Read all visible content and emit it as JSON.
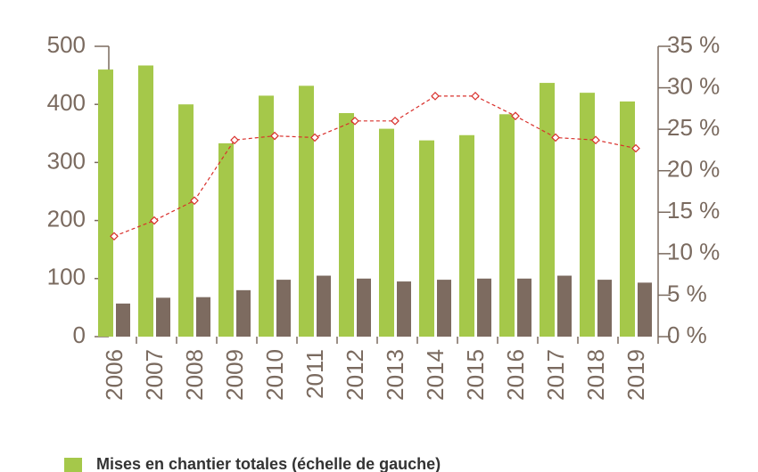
{
  "chart_data": {
    "type": "bar",
    "categories": [
      "2006",
      "2007",
      "2008",
      "2009",
      "2010",
      "2011",
      "2012",
      "2013",
      "2014",
      "2015",
      "2016",
      "2017",
      "2018",
      "2019"
    ],
    "series": [
      {
        "name": "Mises en chantier totales (échelle de gauche)",
        "color": "#a5c84a",
        "values": [
          460,
          467,
          400,
          333,
          415,
          432,
          385,
          358,
          338,
          347,
          383,
          437,
          420,
          405
        ]
      },
      {
        "color": "#7d6b60",
        "values": [
          57,
          67,
          68,
          80,
          98,
          105,
          100,
          95,
          98,
          100,
          100,
          105,
          98,
          93
        ]
      },
      {
        "type": "line",
        "axis": "y2",
        "color": "#d9302c",
        "values": [
          12.1,
          14,
          16.4,
          23.7,
          24.2,
          24,
          26,
          26,
          29,
          29,
          26.6,
          24,
          23.7,
          22.7
        ]
      }
    ],
    "ylim": [
      0,
      500
    ],
    "yticks": [
      0,
      100,
      200,
      300,
      400,
      500
    ],
    "y2lim": [
      0,
      35
    ],
    "y2ticks": [
      {
        "value": 0,
        "label": "0 %"
      },
      {
        "value": 5,
        "label": "5 %"
      },
      {
        "value": 10,
        "label": "10 %"
      },
      {
        "value": 15,
        "label": "15 %"
      },
      {
        "value": 20,
        "label": "20 %"
      },
      {
        "value": 25,
        "label": "25 %"
      },
      {
        "value": 30,
        "label": "30 %"
      },
      {
        "value": 35,
        "label": "35 %"
      }
    ]
  }
}
